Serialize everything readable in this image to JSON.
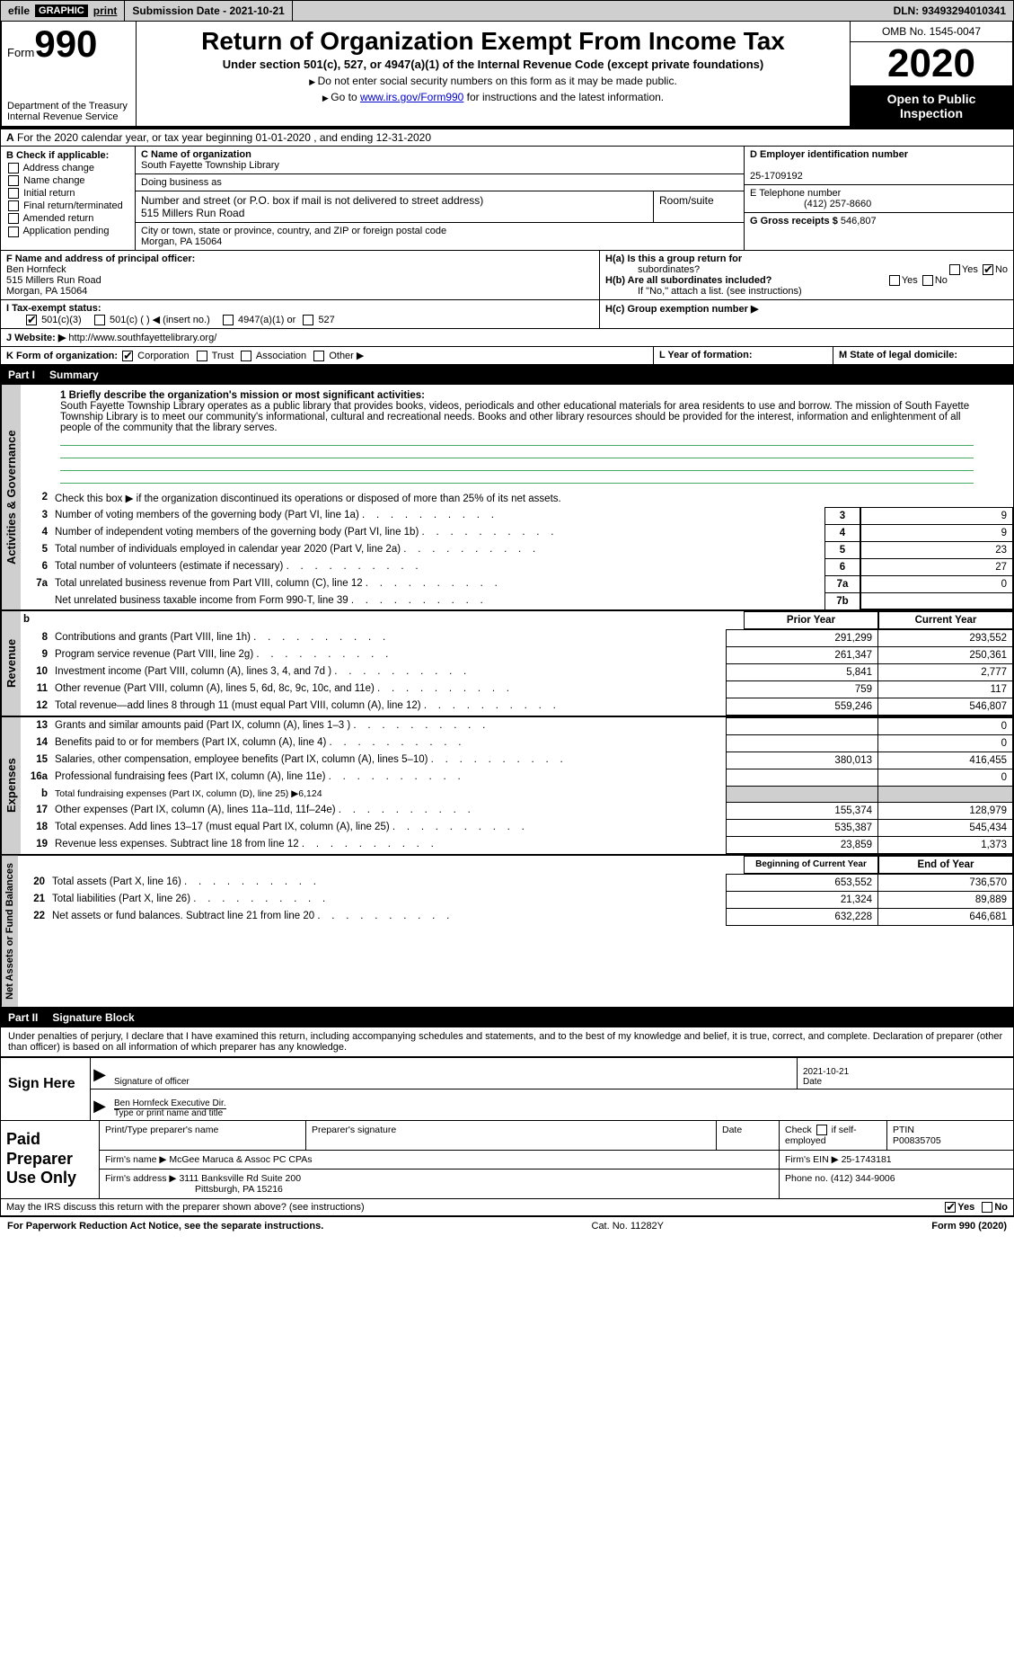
{
  "topbar": {
    "efile_label": "efile",
    "graphic_label": "GRAPHIC",
    "print_label": "print",
    "submission": "Submission Date - 2021-10-21",
    "dln": "DLN: 93493294010341"
  },
  "header": {
    "form_word": "Form",
    "form_number": "990",
    "dept": "Department of the Treasury\nInternal Revenue Service",
    "title": "Return of Organization Exempt From Income Tax",
    "subtitle": "Under section 501(c), 527, or 4947(a)(1) of the Internal Revenue Code (except private foundations)",
    "instr1": "Do not enter social security numbers on this form as it may be made public.",
    "instr2_pre": "Go to ",
    "instr2_link": "www.irs.gov/Form990",
    "instr2_post": " for instructions and the latest information.",
    "omb": "OMB No. 1545-0047",
    "year": "2020",
    "inspection": "Open to Public Inspection"
  },
  "rowA": {
    "label": "A",
    "text": "For the 2020 calendar year, or tax year beginning 01-01-2020    , and ending 12-31-2020"
  },
  "boxB": {
    "hdr": "B Check if applicable:",
    "opts": [
      "Address change",
      "Name change",
      "Initial return",
      "Final return/terminated",
      "Amended return",
      "Application pending"
    ]
  },
  "boxC": {
    "name_lbl": "C Name of organization",
    "name": "South Fayette Township Library",
    "dba_lbl": "Doing business as",
    "street_lbl": "Number and street (or P.O. box if mail is not delivered to street address)",
    "street": "515 Millers Run Road",
    "room_lbl": "Room/suite",
    "city_lbl": "City or town, state or province, country, and ZIP or foreign postal code",
    "city": "Morgan, PA  15064"
  },
  "boxD": {
    "lbl": "D Employer identification number",
    "val": "25-1709192"
  },
  "boxE": {
    "lbl": "E Telephone number",
    "val": "(412) 257-8660"
  },
  "boxG": {
    "lbl": "G Gross receipts $",
    "val": "546,807"
  },
  "boxF": {
    "lbl": "F  Name and address of principal officer:",
    "name": "Ben Hornfeck",
    "addr1": "515 Millers Run Road",
    "addr2": "Morgan, PA  15064"
  },
  "boxH": {
    "a_lbl": "H(a)  Is this a group return for",
    "a_sub": "subordinates?",
    "b_lbl": "H(b)  Are all subordinates included?",
    "b_note": "If \"No,\" attach a list. (see instructions)",
    "c_lbl": "H(c)  Group exemption number ▶",
    "yes": "Yes",
    "no": "No"
  },
  "rowI": {
    "lbl": "I   Tax-exempt status:",
    "o1": "501(c)(3)",
    "o2": "501(c) (  ) ◀ (insert no.)",
    "o3": "4947(a)(1) or",
    "o4": "527"
  },
  "rowJ": {
    "lbl": "J  Website: ▶",
    "val": "http://www.southfayettelibrary.org/"
  },
  "rowK": {
    "lbl": "K Form of organization:",
    "o1": "Corporation",
    "o2": "Trust",
    "o3": "Association",
    "o4": "Other ▶"
  },
  "rowL": {
    "lbl": "L Year of formation:"
  },
  "rowM": {
    "lbl": "M State of legal domicile:"
  },
  "part1": {
    "num": "Part I",
    "title": "Summary"
  },
  "mission": {
    "lbl": "1   Briefly describe the organization's mission or most significant activities:",
    "text": "South Fayette Township Library operates as a public library that provides books, videos, periodicals and other educational materials for area residents to use and borrow. The mission of South Fayette Township Library is to meet our community's informational, cultural and recreational needs. Books and other library resources should be provided for the interest, information and enlightenment of all people of the community that the library serves."
  },
  "vtabs": {
    "gov": "Activities & Governance",
    "rev": "Revenue",
    "exp": "Expenses",
    "net": "Net Assets or Fund Balances"
  },
  "gov_lines": {
    "l2": "Check this box ▶      if the organization discontinued its operations or disposed of more than 25% of its net assets.",
    "l3": {
      "t": "Number of voting members of the governing body (Part VI, line 1a)",
      "n": "3",
      "v": "9"
    },
    "l4": {
      "t": "Number of independent voting members of the governing body (Part VI, line 1b)",
      "n": "4",
      "v": "9"
    },
    "l5": {
      "t": "Total number of individuals employed in calendar year 2020 (Part V, line 2a)",
      "n": "5",
      "v": "23"
    },
    "l6": {
      "t": "Total number of volunteers (estimate if necessary)",
      "n": "6",
      "v": "27"
    },
    "l7a": {
      "t": "Total unrelated business revenue from Part VIII, column (C), line 12",
      "n": "7a",
      "v": "0"
    },
    "l7b": {
      "t": "Net unrelated business taxable income from Form 990-T, line 39",
      "n": "7b",
      "v": ""
    }
  },
  "col_headers": {
    "b": "b",
    "prior": "Prior Year",
    "current": "Current Year",
    "begin": "Beginning of Current Year",
    "end": "End of Year"
  },
  "rev_lines": [
    {
      "n": "8",
      "t": "Contributions and grants (Part VIII, line 1h)",
      "p": "291,299",
      "c": "293,552"
    },
    {
      "n": "9",
      "t": "Program service revenue (Part VIII, line 2g)",
      "p": "261,347",
      "c": "250,361"
    },
    {
      "n": "10",
      "t": "Investment income (Part VIII, column (A), lines 3, 4, and 7d )",
      "p": "5,841",
      "c": "2,777"
    },
    {
      "n": "11",
      "t": "Other revenue (Part VIII, column (A), lines 5, 6d, 8c, 9c, 10c, and 11e)",
      "p": "759",
      "c": "117"
    },
    {
      "n": "12",
      "t": "Total revenue—add lines 8 through 11 (must equal Part VIII, column (A), line 12)",
      "p": "559,246",
      "c": "546,807"
    }
  ],
  "exp_lines": [
    {
      "n": "13",
      "t": "Grants and similar amounts paid (Part IX, column (A), lines 1–3 )",
      "p": "",
      "c": "0"
    },
    {
      "n": "14",
      "t": "Benefits paid to or for members (Part IX, column (A), line 4)",
      "p": "",
      "c": "0"
    },
    {
      "n": "15",
      "t": "Salaries, other compensation, employee benefits (Part IX, column (A), lines 5–10)",
      "p": "380,013",
      "c": "416,455"
    },
    {
      "n": "16a",
      "t": "Professional fundraising fees (Part IX, column (A), line 11e)",
      "p": "",
      "c": "0"
    },
    {
      "n": "b",
      "t": "Total fundraising expenses (Part IX, column (D), line 25) ▶6,124",
      "p": null,
      "c": null
    },
    {
      "n": "17",
      "t": "Other expenses (Part IX, column (A), lines 11a–11d, 11f–24e)",
      "p": "155,374",
      "c": "128,979"
    },
    {
      "n": "18",
      "t": "Total expenses. Add lines 13–17 (must equal Part IX, column (A), line 25)",
      "p": "535,387",
      "c": "545,434"
    },
    {
      "n": "19",
      "t": "Revenue less expenses. Subtract line 18 from line 12",
      "p": "23,859",
      "c": "1,373"
    }
  ],
  "net_lines": [
    {
      "n": "20",
      "t": "Total assets (Part X, line 16)",
      "p": "653,552",
      "c": "736,570"
    },
    {
      "n": "21",
      "t": "Total liabilities (Part X, line 26)",
      "p": "21,324",
      "c": "89,889"
    },
    {
      "n": "22",
      "t": "Net assets or fund balances. Subtract line 21 from line 20",
      "p": "632,228",
      "c": "646,681"
    }
  ],
  "part2": {
    "num": "Part II",
    "title": "Signature Block"
  },
  "sig": {
    "decl": "Under penalties of perjury, I declare that I have examined this return, including accompanying schedules and statements, and to the best of my knowledge and belief, it is true, correct, and complete. Declaration of preparer (other than officer) is based on all information of which preparer has any knowledge.",
    "sign_here": "Sign Here",
    "sig_officer": "Signature of officer",
    "date": "Date",
    "date_val": "2021-10-21",
    "name_title": "Ben Hornfeck  Executive Dir.",
    "type_name": "Type or print name and title"
  },
  "prep": {
    "label": "Paid Preparer Use Only",
    "h1": "Print/Type preparer's name",
    "h2": "Preparer's signature",
    "h3": "Date",
    "h4_pre": "Check",
    "h4_post": "if self-employed",
    "ptin_lbl": "PTIN",
    "ptin": "P00835705",
    "firm_lbl": "Firm's name    ▶",
    "firm": "McGee Maruca & Assoc PC CPAs",
    "ein_lbl": "Firm's EIN ▶",
    "ein": "25-1743181",
    "addr_lbl": "Firm's address ▶",
    "addr1": "3111 Banksville Rd Suite 200",
    "addr2": "Pittsburgh, PA  15216",
    "phone_lbl": "Phone no.",
    "phone": "(412) 344-9006"
  },
  "discuss": {
    "t": "May the IRS discuss this return with the preparer shown above? (see instructions)",
    "yes": "Yes",
    "no": "No"
  },
  "footer": {
    "left": "For Paperwork Reduction Act Notice, see the separate instructions.",
    "mid": "Cat. No. 11282Y",
    "right": "Form 990 (2020)"
  }
}
